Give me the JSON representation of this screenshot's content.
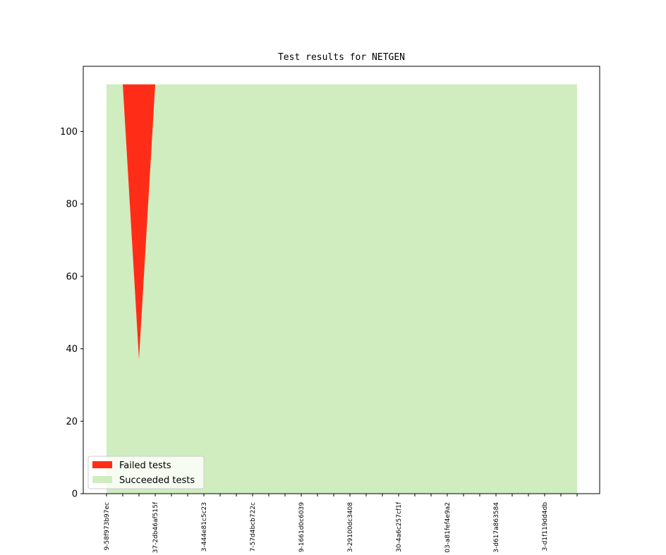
{
  "chart_data": {
    "type": "area",
    "title": "Test results for NETGEN",
    "xlabel": "",
    "ylabel": "",
    "ylim": [
      0,
      118
    ],
    "yticks": [
      0,
      20,
      40,
      60,
      80,
      100
    ],
    "x_count": 30,
    "xtick_labels": [
      {
        "index": 0,
        "label": "9-58f973b97ec"
      },
      {
        "index": 3,
        "label": "37-2db46af515f"
      },
      {
        "index": 6,
        "label": "3-444e81c5c23"
      },
      {
        "index": 9,
        "label": "7-57d4bcb722c"
      },
      {
        "index": 12,
        "label": "9-1661d0c6039"
      },
      {
        "index": 15,
        "label": "3-29100dc3408"
      },
      {
        "index": 18,
        "label": "30-4a6c257cf1f"
      },
      {
        "index": 21,
        "label": "03-a81fef4e9a2"
      },
      {
        "index": 24,
        "label": "3-d617a863584"
      },
      {
        "index": 27,
        "label": "3-d1f119dd4db"
      }
    ],
    "series": [
      {
        "name": "Succeeded tests",
        "color": "#cfedbf",
        "values": [
          113,
          113,
          37,
          113,
          113,
          113,
          113,
          113,
          113,
          113,
          113,
          113,
          113,
          113,
          113,
          113,
          113,
          113,
          113,
          113,
          113,
          113,
          113,
          113,
          113,
          113,
          113,
          113,
          113,
          113
        ]
      },
      {
        "name": "Failed tests",
        "color": "#ff2d18",
        "values": [
          0,
          0,
          76,
          0,
          0,
          0,
          0,
          0,
          0,
          0,
          0,
          0,
          0,
          0,
          0,
          0,
          0,
          0,
          0,
          0,
          0,
          0,
          0,
          0,
          0,
          0,
          0,
          0,
          0,
          0
        ]
      }
    ],
    "total_values": [
      113,
      113,
      113,
      113,
      113,
      113,
      113,
      113,
      113,
      113,
      113,
      113,
      113,
      113,
      113,
      113,
      113,
      113,
      113,
      113,
      113,
      113,
      113,
      113,
      113,
      113,
      113,
      113,
      113,
      113
    ],
    "legend": {
      "placement": "lower-left",
      "entries": [
        "Failed tests",
        "Succeeded tests"
      ]
    },
    "grid": false
  }
}
